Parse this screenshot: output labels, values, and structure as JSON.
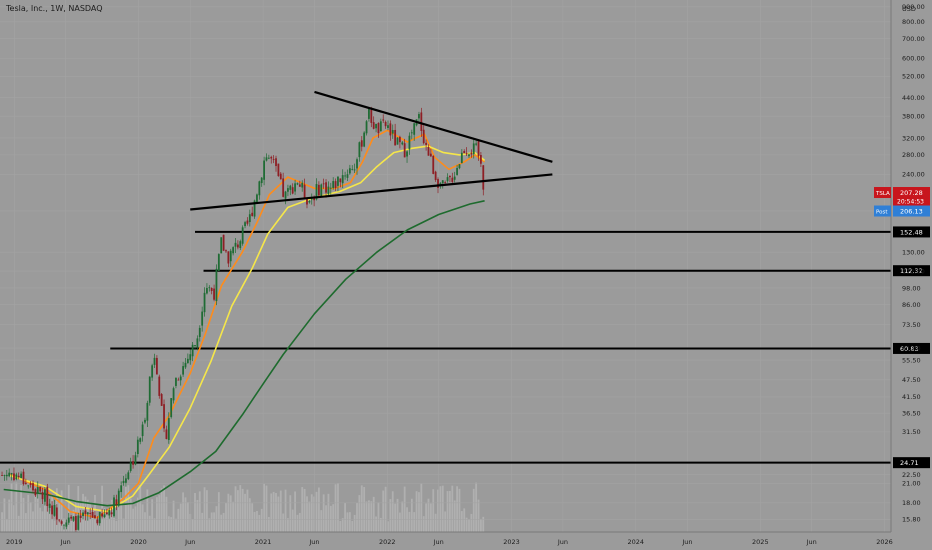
{
  "header": {
    "title": "Tesla, Inc., 1W, NASDAQ"
  },
  "chart_data": {
    "type": "candlestick",
    "currency": "USD",
    "y_scale": "log",
    "ylim": [
      14.3,
      950
    ],
    "xlim": [
      "2018-11-20",
      "2026-01-20"
    ],
    "y_ticks": [
      15.8,
      18,
      21,
      22.5,
      31.5,
      36.5,
      41.5,
      47.5,
      55.5,
      61,
      73.5,
      86,
      98,
      112,
      130,
      180,
      240,
      280,
      320,
      380,
      440,
      520,
      600,
      700,
      800,
      900
    ],
    "y_tick_labels": [
      "15.80",
      "18.00",
      "21.00",
      "22.50",
      "31.50",
      "36.50",
      "41.50",
      "47.50",
      "55.50",
      "61.00",
      "73.50",
      "86.00",
      "98.00",
      "112.00",
      "130.00",
      "180.00",
      "240.00",
      "280.00",
      "320.00",
      "380.00",
      "440.00",
      "520.00",
      "600.00",
      "700.00",
      "800.00",
      "900.00"
    ],
    "x_ticks": [
      {
        "date": "2019-01-01",
        "label": "2019"
      },
      {
        "date": "2019-06-01",
        "label": "Jun"
      },
      {
        "date": "2020-01-01",
        "label": "2020"
      },
      {
        "date": "2020-06-01",
        "label": "Jun"
      },
      {
        "date": "2021-01-01",
        "label": "2021"
      },
      {
        "date": "2021-06-01",
        "label": "Jun"
      },
      {
        "date": "2022-01-01",
        "label": "2022"
      },
      {
        "date": "2022-06-01",
        "label": "Jun"
      },
      {
        "date": "2023-01-01",
        "label": "2023"
      },
      {
        "date": "2023-06-01",
        "label": "Jun"
      },
      {
        "date": "2024-01-01",
        "label": "2024"
      },
      {
        "date": "2024-06-01",
        "label": "Jun"
      },
      {
        "date": "2025-01-01",
        "label": "2025"
      },
      {
        "date": "2025-06-01",
        "label": "Jun"
      },
      {
        "date": "2026-01-01",
        "label": "2026"
      }
    ],
    "price_path": [
      [
        "2018-11-26",
        22.4
      ],
      [
        "2018-12-20",
        22.9
      ],
      [
        "2019-01-20",
        22
      ],
      [
        "2019-03-01",
        19.8
      ],
      [
        "2019-04-01",
        19
      ],
      [
        "2019-05-01",
        16.8
      ],
      [
        "2019-06-03",
        15.6
      ],
      [
        "2019-07-01",
        15.4
      ],
      [
        "2019-08-12",
        16.2
      ],
      [
        "2019-09-15",
        15.8
      ],
      [
        "2019-10-20",
        17.8
      ],
      [
        "2019-11-20",
        22
      ],
      [
        "2019-12-20",
        26
      ],
      [
        "2020-01-15",
        33
      ],
      [
        "2020-02-05",
        50
      ],
      [
        "2020-02-19",
        60
      ],
      [
        "2020-03-18",
        29
      ],
      [
        "2020-04-15",
        47
      ],
      [
        "2020-05-20",
        55
      ],
      [
        "2020-06-20",
        65
      ],
      [
        "2020-07-15",
        100
      ],
      [
        "2020-08-10",
        95
      ],
      [
        "2020-08-31",
        140
      ],
      [
        "2020-09-21",
        125
      ],
      [
        "2020-10-20",
        140
      ],
      [
        "2020-11-20",
        165
      ],
      [
        "2020-12-20",
        225
      ],
      [
        "2021-01-08",
        280
      ],
      [
        "2021-01-29",
        265
      ],
      [
        "2021-03-05",
        200
      ],
      [
        "2021-04-10",
        230
      ],
      [
        "2021-05-15",
        195
      ],
      [
        "2021-06-20",
        220
      ],
      [
        "2021-07-20",
        215
      ],
      [
        "2021-08-20",
        238
      ],
      [
        "2021-09-30",
        260
      ],
      [
        "2021-10-25",
        340
      ],
      [
        "2021-11-04",
        395
      ],
      [
        "2021-12-01",
        340
      ],
      [
        "2021-12-31",
        355
      ],
      [
        "2022-01-25",
        310
      ],
      [
        "2022-02-20",
        290
      ],
      [
        "2022-04-04",
        375
      ],
      [
        "2022-04-25",
        300
      ],
      [
        "2022-05-24",
        235
      ],
      [
        "2022-06-15",
        215
      ],
      [
        "2022-07-15",
        240
      ],
      [
        "2022-08-15",
        295
      ],
      [
        "2022-09-20",
        290
      ],
      [
        "2022-09-30",
        270
      ],
      [
        "2022-10-14",
        207
      ]
    ],
    "last_bar_date": "2022-10-14",
    "series": [
      {
        "name": "",
        "color": "#ff8c1a",
        "values": [
          [
            "2018-12-20",
            22.5
          ],
          [
            "2019-04-01",
            20
          ],
          [
            "2019-06-15",
            16.8
          ],
          [
            "2019-09-01",
            16
          ],
          [
            "2019-11-15",
            18.5
          ],
          [
            "2020-01-01",
            21
          ],
          [
            "2020-02-15",
            30
          ],
          [
            "2020-04-01",
            36
          ],
          [
            "2020-06-01",
            50
          ],
          [
            "2020-07-15",
            68
          ],
          [
            "2020-09-01",
            100
          ],
          [
            "2020-11-01",
            130
          ],
          [
            "2020-12-15",
            165
          ],
          [
            "2021-01-20",
            205
          ],
          [
            "2021-03-15",
            235
          ],
          [
            "2021-06-01",
            215
          ],
          [
            "2021-08-01",
            215
          ],
          [
            "2021-09-15",
            225
          ],
          [
            "2021-10-20",
            265
          ],
          [
            "2021-11-20",
            320
          ],
          [
            "2022-01-01",
            340
          ],
          [
            "2022-03-01",
            310
          ],
          [
            "2022-04-20",
            330
          ],
          [
            "2022-05-20",
            275
          ],
          [
            "2022-07-01",
            250
          ],
          [
            "2022-08-15",
            265
          ],
          [
            "2022-09-15",
            280
          ],
          [
            "2022-10-14",
            265
          ]
        ]
      },
      {
        "name": "",
        "color": "#f5e64a",
        "values": [
          [
            "2018-12-20",
            22.3
          ],
          [
            "2019-04-01",
            20.5
          ],
          [
            "2019-07-01",
            17.5
          ],
          [
            "2019-10-01",
            16.8
          ],
          [
            "2019-12-15",
            19
          ],
          [
            "2020-02-01",
            22.5
          ],
          [
            "2020-04-01",
            28
          ],
          [
            "2020-06-01",
            38
          ],
          [
            "2020-08-01",
            55
          ],
          [
            "2020-10-01",
            85
          ],
          [
            "2020-12-01",
            115
          ],
          [
            "2021-01-15",
            150
          ],
          [
            "2021-03-15",
            185
          ],
          [
            "2021-06-01",
            200
          ],
          [
            "2021-08-15",
            210
          ],
          [
            "2021-10-15",
            225
          ],
          [
            "2021-12-01",
            255
          ],
          [
            "2022-01-20",
            285
          ],
          [
            "2022-03-15",
            295
          ],
          [
            "2022-05-01",
            300
          ],
          [
            "2022-06-15",
            285
          ],
          [
            "2022-08-01",
            280
          ],
          [
            "2022-09-15",
            285
          ],
          [
            "2022-10-14",
            268
          ]
        ]
      },
      {
        "name": "",
        "color": "#1e6b2e",
        "values": [
          [
            "2018-12-01",
            20
          ],
          [
            "2019-04-01",
            19.3
          ],
          [
            "2019-07-01",
            18.2
          ],
          [
            "2019-10-01",
            17.6
          ],
          [
            "2019-12-15",
            17.9
          ],
          [
            "2020-03-01",
            19.5
          ],
          [
            "2020-06-01",
            23
          ],
          [
            "2020-08-15",
            27
          ],
          [
            "2020-11-01",
            36
          ],
          [
            "2021-01-01",
            46
          ],
          [
            "2021-03-01",
            58
          ],
          [
            "2021-06-01",
            80
          ],
          [
            "2021-09-01",
            105
          ],
          [
            "2021-12-01",
            130
          ],
          [
            "2022-03-01",
            155
          ],
          [
            "2022-06-01",
            175
          ],
          [
            "2022-09-01",
            190
          ],
          [
            "2022-10-14",
            195
          ]
        ]
      }
    ],
    "horizontal_levels": [
      {
        "value": 152.48,
        "label": "152.48",
        "from": "2020-06-15"
      },
      {
        "value": 112.32,
        "label": "112.32",
        "from": "2020-07-10"
      },
      {
        "value": 60.83,
        "label": "60.83",
        "from": "2019-10-10"
      },
      {
        "value": 24.71,
        "label": "24.71",
        "from": "2018-11-20"
      }
    ],
    "trendlines": [
      {
        "from": [
          "2021-06-01",
          460
        ],
        "to": [
          "2023-05-01",
          265
        ]
      },
      {
        "from": [
          "2020-06-01",
          182
        ],
        "to": [
          "2023-05-01",
          240
        ]
      }
    ],
    "price_labels": [
      {
        "text": "TSLA",
        "value_text": "207.28",
        "sub_text": "20:54:53",
        "value": 207.28,
        "color": "#c8161d"
      },
      {
        "text": "Post",
        "value_text": "206.13",
        "value": 206.13,
        "color": "#2f7fd6"
      }
    ]
  }
}
